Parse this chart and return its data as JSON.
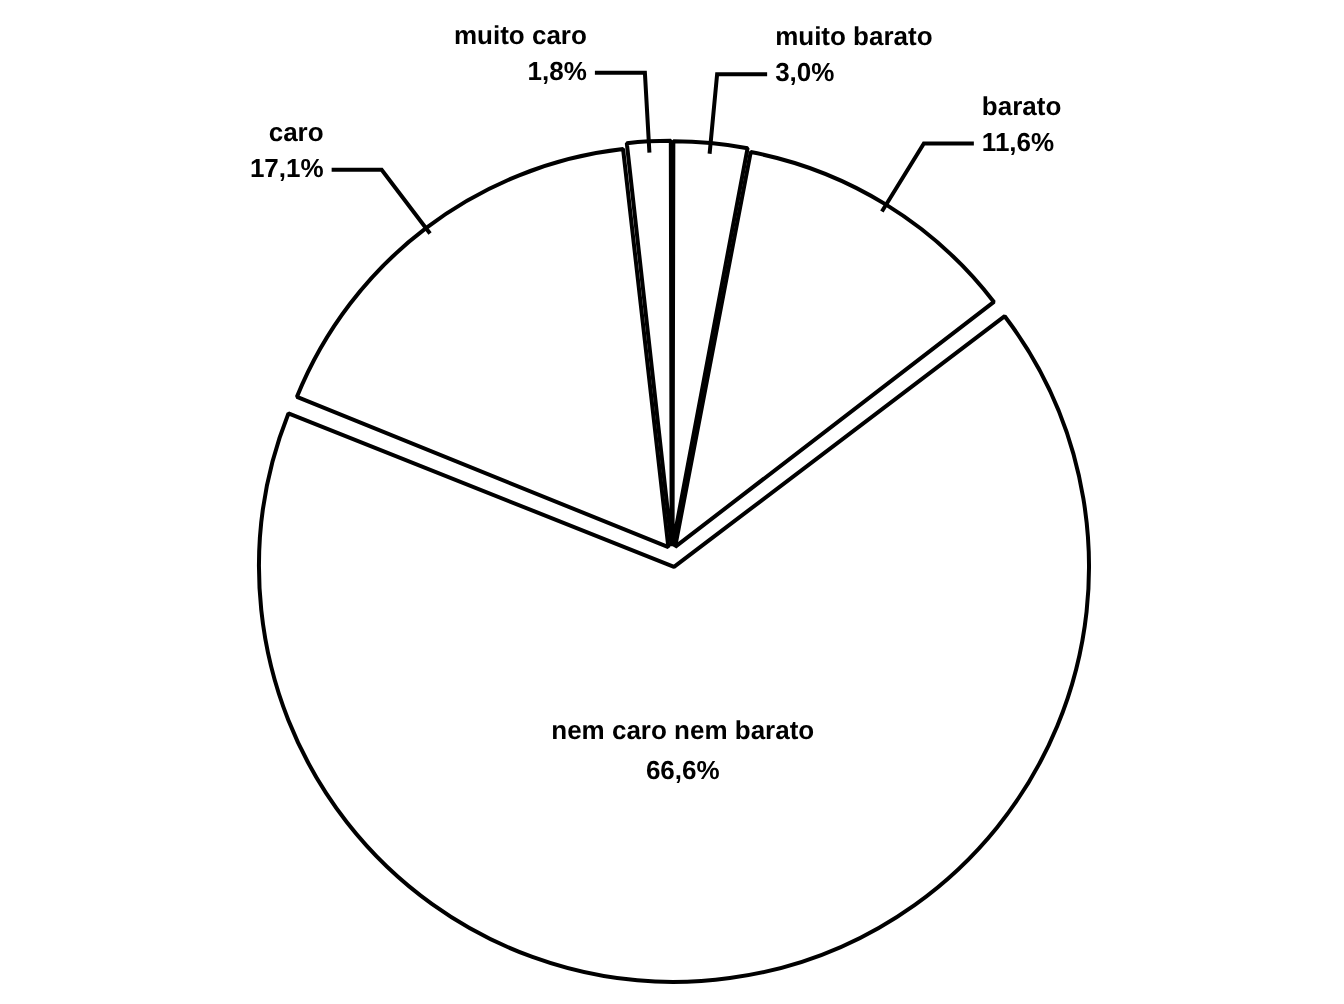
{
  "chart_data": {
    "type": "pie",
    "categories": [
      "muito barato",
      "barato",
      "nem caro nem barato",
      "caro",
      "muito caro"
    ],
    "values": [
      3.0,
      11.6,
      66.6,
      17.1,
      1.8
    ],
    "value_labels": [
      "3,0%",
      "11,6%",
      "66,6%",
      "17,1%",
      "1,8%"
    ],
    "colors": [
      "#ffffff",
      "#ffffff",
      "#ffffff",
      "#ffffff",
      "#ffffff"
    ],
    "legend": false
  }
}
